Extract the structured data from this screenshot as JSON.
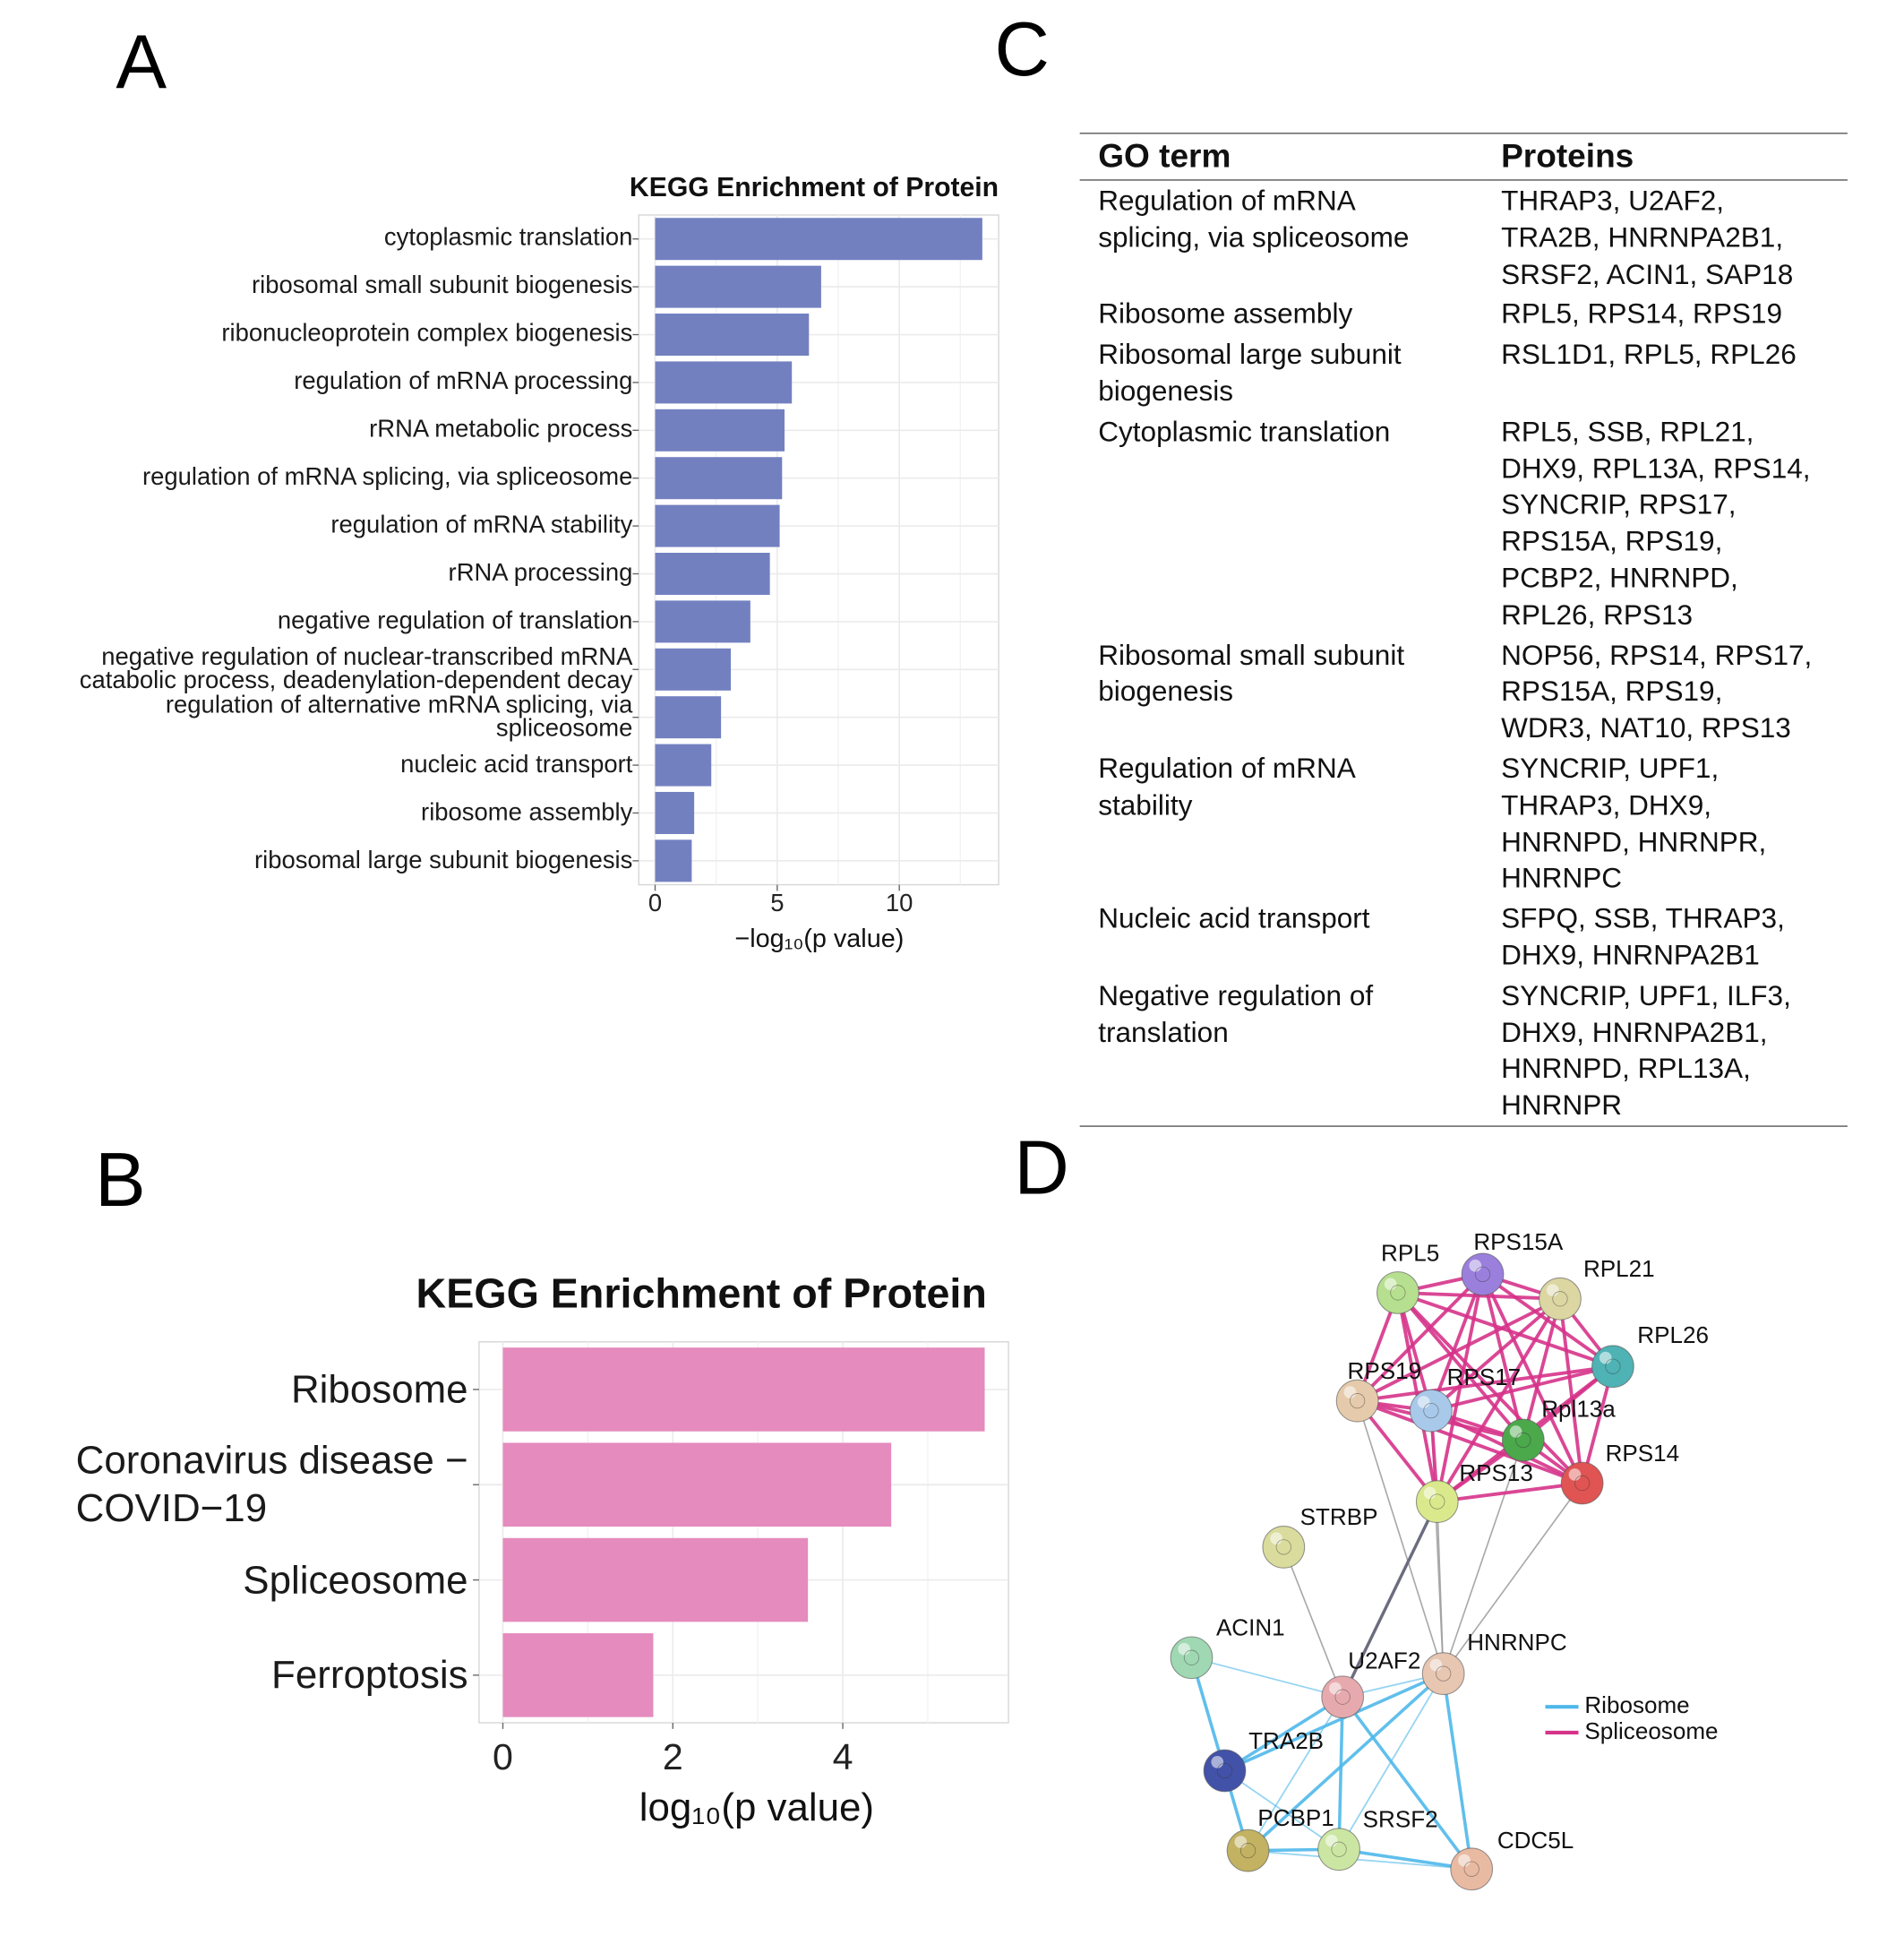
{
  "panel_labels": [
    "A",
    "B",
    "C",
    "D"
  ],
  "chart_data": [
    {
      "type": "bar",
      "orientation": "horizontal",
      "title": "KEGG Enrichment of Protein",
      "categories": [
        "cytoplasmic translation",
        "ribosomal small subunit biogenesis",
        "ribonucleoprotein complex biogenesis",
        "regulation of mRNA processing",
        "rRNA metabolic process",
        "regulation of mRNA splicing, via spliceosome",
        "regulation of mRNA stability",
        "rRNA processing",
        "negative regulation of translation",
        "negative regulation of nuclear-transcribed mRNA\ncatabolic process, deadenylation-dependent decay",
        "regulation of alternative mRNA splicing, via\nspliceosome",
        "nucleic acid transport",
        "ribosome assembly",
        "ribosomal large subunit biogenesis"
      ],
      "values": [
        13.4,
        6.8,
        6.3,
        5.6,
        5.3,
        5.2,
        5.1,
        4.7,
        3.9,
        3.1,
        2.7,
        2.3,
        1.6,
        1.5
      ],
      "color": "#7380c0",
      "xlim": [
        -0.67,
        14.07
      ],
      "xticks": [
        0,
        5,
        10
      ],
      "x_label": "−log₁₀(p value)",
      "grid": true
    },
    {
      "type": "bar",
      "orientation": "horizontal",
      "title": "KEGG Enrichment of Protein",
      "categories": [
        "Ribosome",
        "Coronavirus disease −\nCOVID−19",
        "Spliceosome",
        "Ferroptosis"
      ],
      "values": [
        5.67,
        4.57,
        3.59,
        1.77
      ],
      "color": "#e58bbd",
      "xlim": [
        -0.28,
        5.95
      ],
      "xticks": [
        0,
        2,
        4
      ],
      "x_label": "log₁₀(p value)",
      "grid": true
    }
  ],
  "table": {
    "header": [
      "GO term",
      "Proteins"
    ],
    "rows": [
      [
        "Regulation of mRNA\nsplicing, via spliceosome",
        "THRAP3, U2AF2,\nTRA2B, HNRNPA2B1,\nSRSF2, ACIN1, SAP18"
      ],
      [
        "Ribosome assembly",
        "RPL5, RPS14, RPS19"
      ],
      [
        "Ribosomal large subunit\nbiogenesis",
        "RSL1D1, RPL5, RPL26"
      ],
      [
        "Cytoplasmic translation",
        "RPL5, SSB, RPL21,\nDHX9, RPL13A, RPS14,\nSYNCRIP, RPS17,\nRPS15A, RPS19,\nPCBP2, HNRNPD,\nRPL26, RPS13"
      ],
      [
        "Ribosomal small subunit\nbiogenesis",
        "NOP56, RPS14, RPS17,\nRPS15A, RPS19,\nWDR3, NAT10, RPS13"
      ],
      [
        "Regulation of mRNA\nstability",
        "SYNCRIP, UPF1,\nTHRAP3, DHX9,\nHNRNPD, HNRNPR,\nHNRNPC"
      ],
      [
        "Nucleic acid transport",
        "SFPQ, SSB, THRAP3,\nDHX9, HNRNPA2B1"
      ],
      [
        "Negative regulation of\ntranslation",
        "SYNCRIP, UPF1, ILF3,\nDHX9, HNRNPA2B1,\nHNRNPD, RPL13A,\nHNRNPR"
      ]
    ]
  },
  "network": {
    "nodes": [
      {
        "label": "RPL5",
        "color": "#b6df8f"
      },
      {
        "label": "RPS15A",
        "color": "#9a80dc"
      },
      {
        "label": "RPL21",
        "color": "#dcd6a2"
      },
      {
        "label": "RPL26",
        "color": "#4fb2b4"
      },
      {
        "label": "RPS19",
        "color": "#e5cbab"
      },
      {
        "label": "RPS17",
        "color": "#a9c9ea"
      },
      {
        "label": "Rpl13a",
        "color": "#4ba84b"
      },
      {
        "label": "RPS14",
        "color": "#e05454"
      },
      {
        "label": "RPS13",
        "color": "#d9e98c"
      },
      {
        "label": "STRBP",
        "color": "#d9dc9c"
      },
      {
        "label": "ACIN1",
        "color": "#9fd8b2"
      },
      {
        "label": "U2AF2",
        "color": "#e6aaae"
      },
      {
        "label": "HNRNPC",
        "color": "#e7c6b2"
      },
      {
        "label": "TRA2B",
        "color": "#4252a8"
      },
      {
        "label": "PCBP1",
        "color": "#c2b262"
      },
      {
        "label": "SRSF2",
        "color": "#cbe6a2"
      },
      {
        "label": "CDC5L",
        "color": "#e9baa2"
      }
    ],
    "legend": [
      {
        "name": "Ribosome",
        "color": "#4fb8ea"
      },
      {
        "name": "Spliceosome",
        "color": "#d6338a"
      }
    ]
  }
}
